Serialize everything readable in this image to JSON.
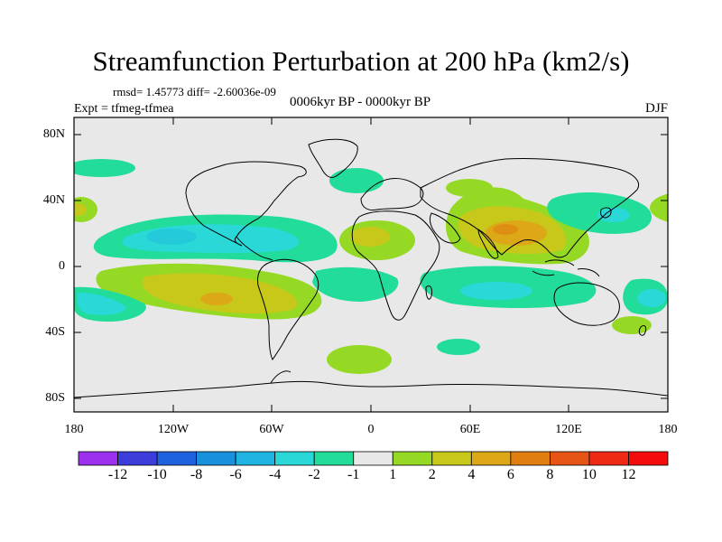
{
  "title": "Streamfunction Perturbation at 200 hPa (km2/s)",
  "stats": "rmsd= 1.45773 diff= -2.60036e-09",
  "experiment": "Expt = tfmeg-tfmea",
  "period": "0006kyr BP - 0000kyr BP",
  "season": "DJF",
  "lat_labels": [
    "80N",
    "40N",
    "0",
    "40S",
    "80S"
  ],
  "lon_labels": [
    "180",
    "120W",
    "60W",
    "0",
    "60E",
    "120E",
    "180"
  ],
  "colorbar": {
    "labels": [
      "-12",
      "-10",
      "-8",
      "-6",
      "-4",
      "-2",
      "-1",
      "1",
      "2",
      "4",
      "6",
      "8",
      "10",
      "12"
    ],
    "colors": [
      "#9b30ef",
      "#3d3ddb",
      "#1f62e0",
      "#1890dc",
      "#1eb3e0",
      "#2ad8d8",
      "#22dc9a",
      "#e8e8e8",
      "#96d925",
      "#c8c81a",
      "#dca818",
      "#e07f10",
      "#e65416",
      "#ee2a14",
      "#f20c0c"
    ]
  },
  "anomalies": [
    {
      "region": "North Pacific",
      "level": "2"
    },
    {
      "region": "Tropical Pacific / Caribbean",
      "level": "-2"
    },
    {
      "region": "South America",
      "level": "4"
    },
    {
      "region": "Southeast Pacific",
      "level": "-2"
    },
    {
      "region": "Tropical Atlantic / Africa",
      "level": "2"
    },
    {
      "region": "South Asia / Tibet",
      "level": "6"
    },
    {
      "region": "Indian Ocean",
      "level": "-2"
    },
    {
      "region": "Western Pacific",
      "level": "-2"
    },
    {
      "region": "Southern Ocean",
      "level": "2"
    }
  ]
}
